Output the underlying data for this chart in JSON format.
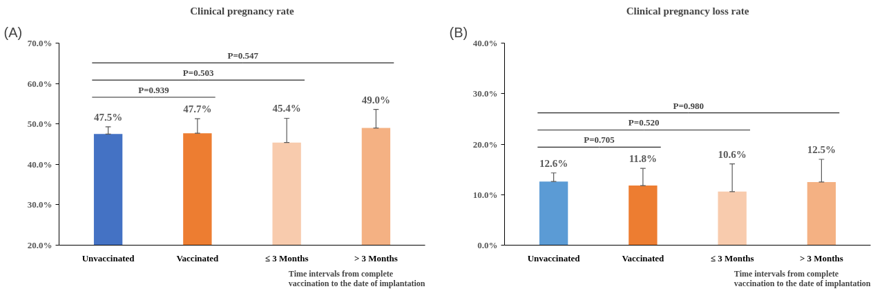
{
  "chart_data": [
    {
      "type": "bar",
      "title": "Clinical pregnancy rate",
      "xlabel": "Time intervals from complete\nvaccination to the date of implantation",
      "categories": [
        "Unvaccinated",
        "Vaccinated",
        "≤ 3 Months",
        "> 3 Months"
      ],
      "values": [
        47.5,
        47.7,
        45.4,
        49.0
      ],
      "colors": [
        "#4472c4",
        "#ed7d31",
        "#f8cbad",
        "#f4b183"
      ],
      "value_labels": [
        "47.5%",
        "47.7%",
        "45.4%",
        "49.0%"
      ],
      "errors": [
        [
          47.5,
          49.3
        ],
        [
          47.7,
          51.3
        ],
        [
          45.4,
          51.4
        ],
        [
          49.0,
          53.6
        ]
      ],
      "ylim": [
        20,
        70
      ],
      "yticks": [
        {
          "value": 20,
          "label": "20.0%"
        },
        {
          "value": 30,
          "label": "30.0%"
        },
        {
          "value": 40,
          "label": "40.0%"
        },
        {
          "value": 50,
          "label": "50.0%"
        },
        {
          "value": 60,
          "label": "60.0%"
        },
        {
          "value": 70,
          "label": "70.0%"
        }
      ],
      "grid": false,
      "annotations": [
        "(A)",
        "P=0.939",
        "P=0.503",
        "P=0.547"
      ]
    },
    {
      "type": "bar",
      "title": "Clinical pregnancy loss rate",
      "xlabel": "Time intervals from complete\nvaccination to the date of implantation",
      "categories": [
        "Unvaccinated",
        "Vaccinated",
        "≤ 3 Months",
        "> 3 Months"
      ],
      "values": [
        12.6,
        11.8,
        10.6,
        12.5
      ],
      "colors": [
        "#5b9bd5",
        "#ed7d31",
        "#f8cbad",
        "#f4b183"
      ],
      "value_labels": [
        "12.6%",
        "11.8%",
        "10.6%",
        "12.5%"
      ],
      "errors": [
        [
          12.6,
          14.3
        ],
        [
          11.8,
          15.2
        ],
        [
          10.6,
          16.1
        ],
        [
          12.5,
          17.0
        ]
      ],
      "ylim": [
        0,
        40
      ],
      "yticks": [
        {
          "value": 0,
          "label": "0.0%"
        },
        {
          "value": 10,
          "label": "10.0%"
        },
        {
          "value": 20,
          "label": "20.0%"
        },
        {
          "value": 30,
          "label": "30.0%"
        },
        {
          "value": 40,
          "label": "40.0%"
        }
      ],
      "grid": false,
      "annotations": [
        "(B)",
        "P=0.705",
        "P=0.520",
        "P=0.980"
      ]
    }
  ]
}
